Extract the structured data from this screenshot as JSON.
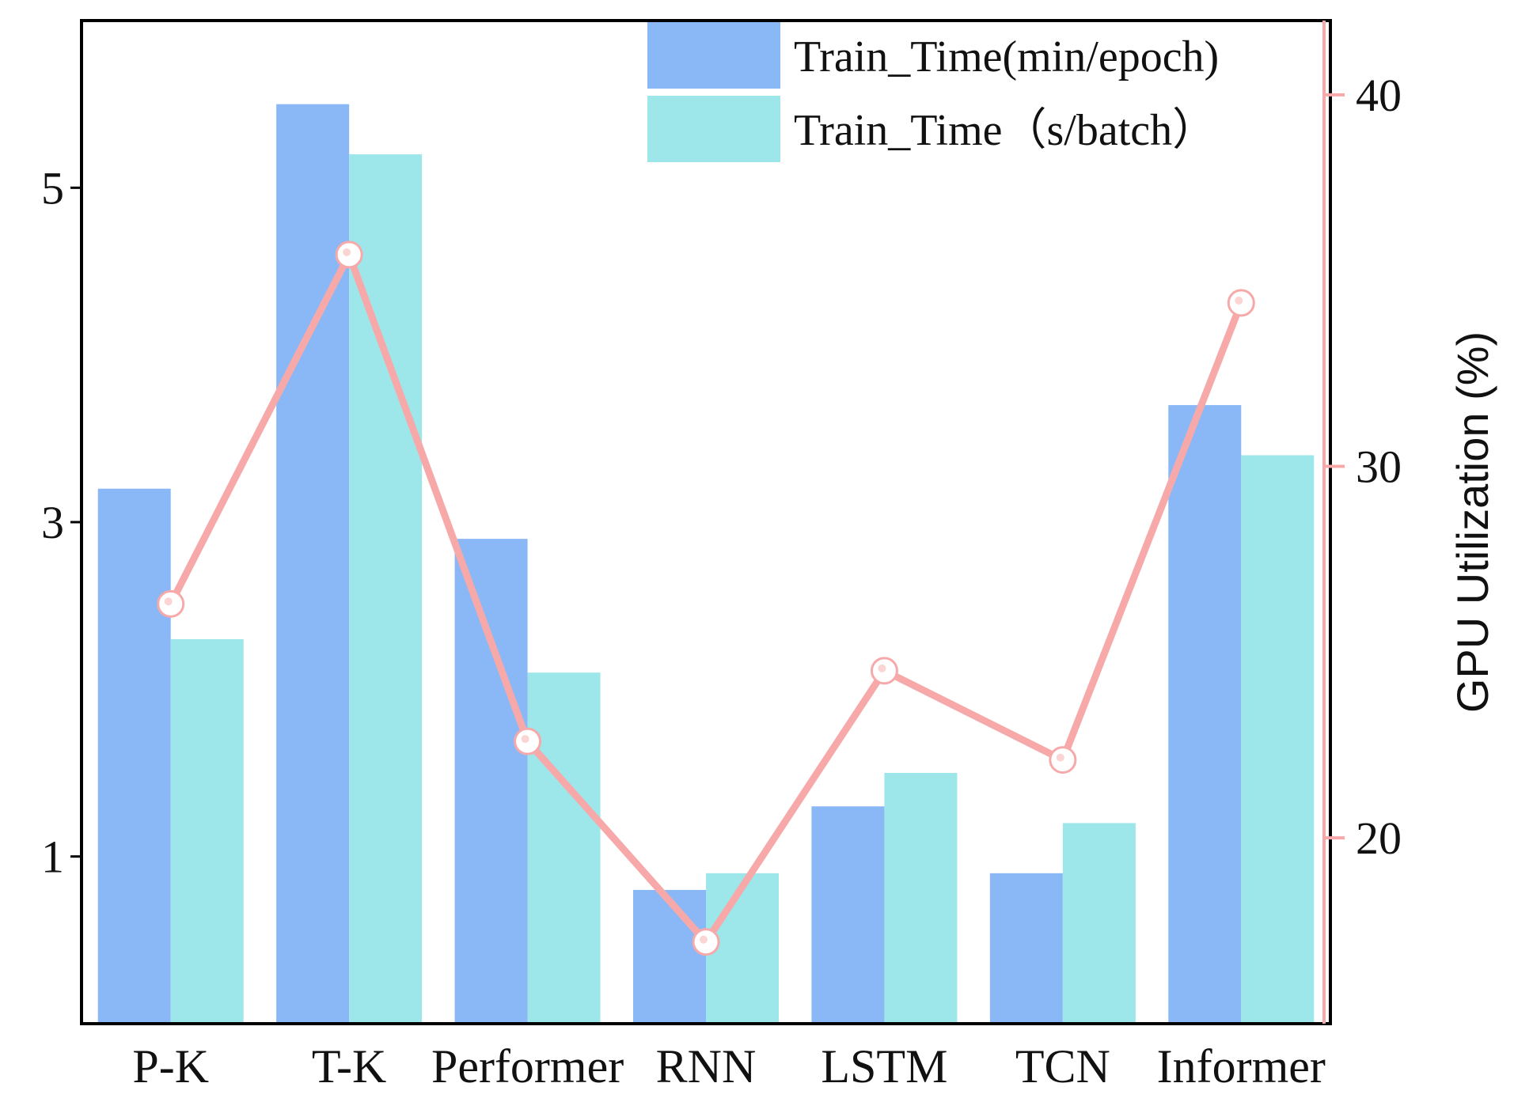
{
  "chart_data": {
    "type": "bar",
    "categories": [
      "P-K",
      "T-K",
      "Performer",
      "RNN",
      "LSTM",
      "TCN",
      "Informer"
    ],
    "series": [
      {
        "name": "Train_Time(min/epoch)",
        "axis": "left",
        "type": "bar",
        "color": "#8ab8f6",
        "values": [
          3.2,
          5.5,
          2.9,
          0.8,
          1.3,
          0.9,
          3.7
        ]
      },
      {
        "name": "Train_Time（s/batch）",
        "axis": "left",
        "type": "bar",
        "color": "#9de6ea",
        "values": [
          2.3,
          5.2,
          2.1,
          0.9,
          1.5,
          1.2,
          3.4
        ]
      },
      {
        "name": "",
        "axis": "right",
        "type": "line",
        "color": "#f7a9aa",
        "values": [
          26.3,
          35.7,
          22.6,
          17.2,
          24.5,
          22.1,
          34.4
        ]
      }
    ],
    "left_axis": {
      "ylim": [
        0,
        6
      ],
      "ticks": [
        1,
        3,
        5
      ],
      "tick_labels": [
        "1",
        "3",
        "5"
      ]
    },
    "right_axis": {
      "ylim": [
        15,
        42
      ],
      "ticks": [
        20,
        30,
        40
      ],
      "tick_labels": [
        "20",
        "30",
        "40"
      ],
      "label": "GPU Utilization (%)",
      "color": "#f7a9aa"
    },
    "legend": {
      "placement": "top-right"
    },
    "grid": false
  }
}
